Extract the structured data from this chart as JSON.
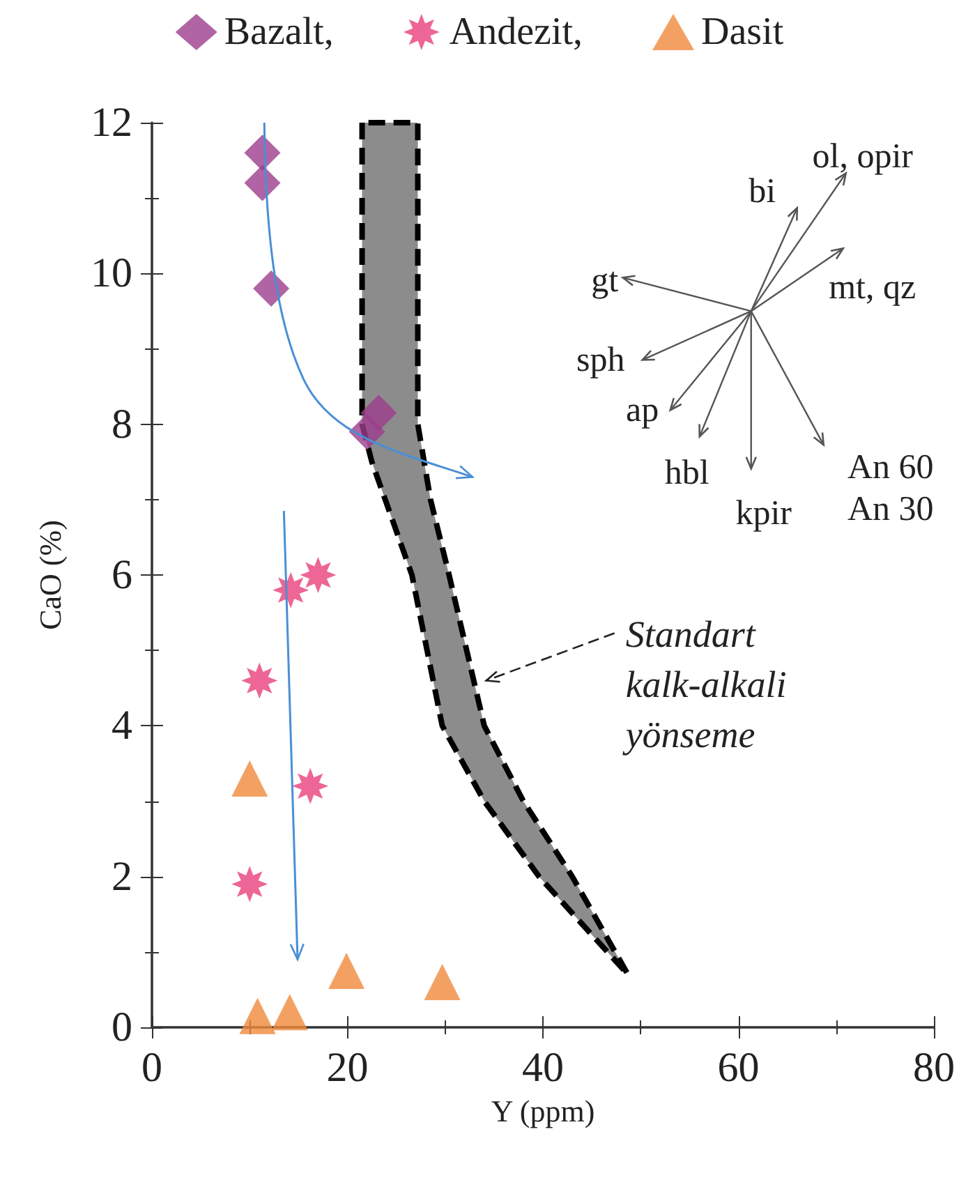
{
  "chart_data": {
    "type": "scatter",
    "xlabel": "Y (ppm)",
    "ylabel": "CaO (%)",
    "xlim": [
      0,
      80
    ],
    "xticks": [
      0,
      20,
      40,
      60,
      80
    ],
    "ylim": [
      0,
      12
    ],
    "yticks": [
      0,
      2,
      4,
      6,
      8,
      10,
      12
    ],
    "grid": false,
    "legend": "top",
    "series": [
      {
        "type": "area",
        "color": "#8c8c8c",
        "line_style": "dashed",
        "x": [
          21.5,
          21.5,
          22.5,
          26.6,
          29.7,
          34,
          39.6,
          48.7,
          43,
          38,
          34,
          30.4,
          28.5,
          27.2,
          27.2
        ],
        "values": [
          12,
          8,
          7.5,
          6,
          4,
          3,
          2,
          0.7,
          2,
          3,
          4,
          6,
          7,
          8,
          12
        ]
      },
      {
        "name": "Bazalt,",
        "color": "#9c3d8c",
        "marker": "diamond",
        "x": [
          11.3,
          11.3,
          12.2,
          23.2,
          22
        ],
        "values": [
          11.6,
          11.2,
          9.8,
          8.15,
          7.9
        ]
      },
      {
        "name": "Andezit,",
        "color": "#e8407a",
        "marker": "star",
        "x": [
          17,
          14.2,
          11,
          16.2,
          10
        ],
        "values": [
          6,
          5.8,
          4.6,
          3.2,
          1.9
        ]
      },
      {
        "name": "Dasit",
        "color": "#f08a3c",
        "marker": "triangle",
        "x": [
          10,
          19.9,
          29.7,
          10.8,
          14.1
        ],
        "values": [
          3.3,
          0.75,
          0.6,
          0.15,
          0.2
        ]
      }
    ],
    "annotations": [
      "ol, opir",
      "bi",
      "gt",
      "mt, qz",
      "sph",
      "ap",
      "hbl",
      "kpir",
      "An 60",
      "An 30",
      "Standart\nkalk-alkali\nyönseme"
    ]
  }
}
